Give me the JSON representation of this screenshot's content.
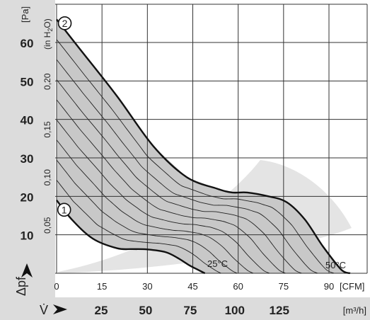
{
  "chart_data": {
    "type": "area",
    "title": "",
    "y_unit_left": "[Pa]",
    "y_unit_inh2o": "(in H",
    "y_unit_inh2o_sub": "2",
    "y_unit_inh2o_end": "O)",
    "y_axis_symbol": "Δpf",
    "x_axis_symbol": "V̇",
    "x_unit_cfm": "[CFM]",
    "x_unit_m3h": "[m³/h]",
    "pa_ticks": [
      "60",
      "50",
      "40",
      "30",
      "20",
      "10"
    ],
    "pa_tick_values": [
      60,
      50,
      40,
      30,
      20,
      10
    ],
    "inh2o_ticks": [
      "0,20",
      "0,15",
      "0,10",
      "0,05"
    ],
    "inh2o_tick_values": [
      0.2,
      0.15,
      0.1,
      0.05
    ],
    "cfm_ticks": [
      "0",
      "15",
      "30",
      "45",
      "60",
      "75",
      "90"
    ],
    "cfm_tick_values": [
      0,
      15,
      30,
      45,
      60,
      75,
      90
    ],
    "m3h_ticks": [
      "25",
      "50",
      "75",
      "100",
      "125"
    ],
    "m3h_tick_values": [
      25,
      50,
      75,
      100,
      125
    ],
    "xlim": [
      0,
      100
    ],
    "ylim": [
      0,
      67
    ],
    "series": [
      {
        "name": "2",
        "x": [
          0,
          8,
          20,
          32,
          43,
          53,
          58,
          63,
          70,
          76,
          82,
          88,
          94,
          97
        ],
        "y": [
          66,
          58,
          46,
          33,
          25,
          22,
          21,
          21,
          20,
          18.5,
          14,
          7,
          1,
          0
        ]
      },
      {
        "name": "1",
        "x": [
          0,
          5,
          12,
          20,
          25,
          30,
          36,
          40,
          44,
          47,
          49
        ],
        "y": [
          19,
          14,
          9,
          6.5,
          6.3,
          6.2,
          5.5,
          4,
          2,
          0.8,
          0
        ]
      }
    ],
    "annotations": [
      "25°C",
      "50°C"
    ],
    "marker_labels": [
      "1",
      "2"
    ]
  }
}
